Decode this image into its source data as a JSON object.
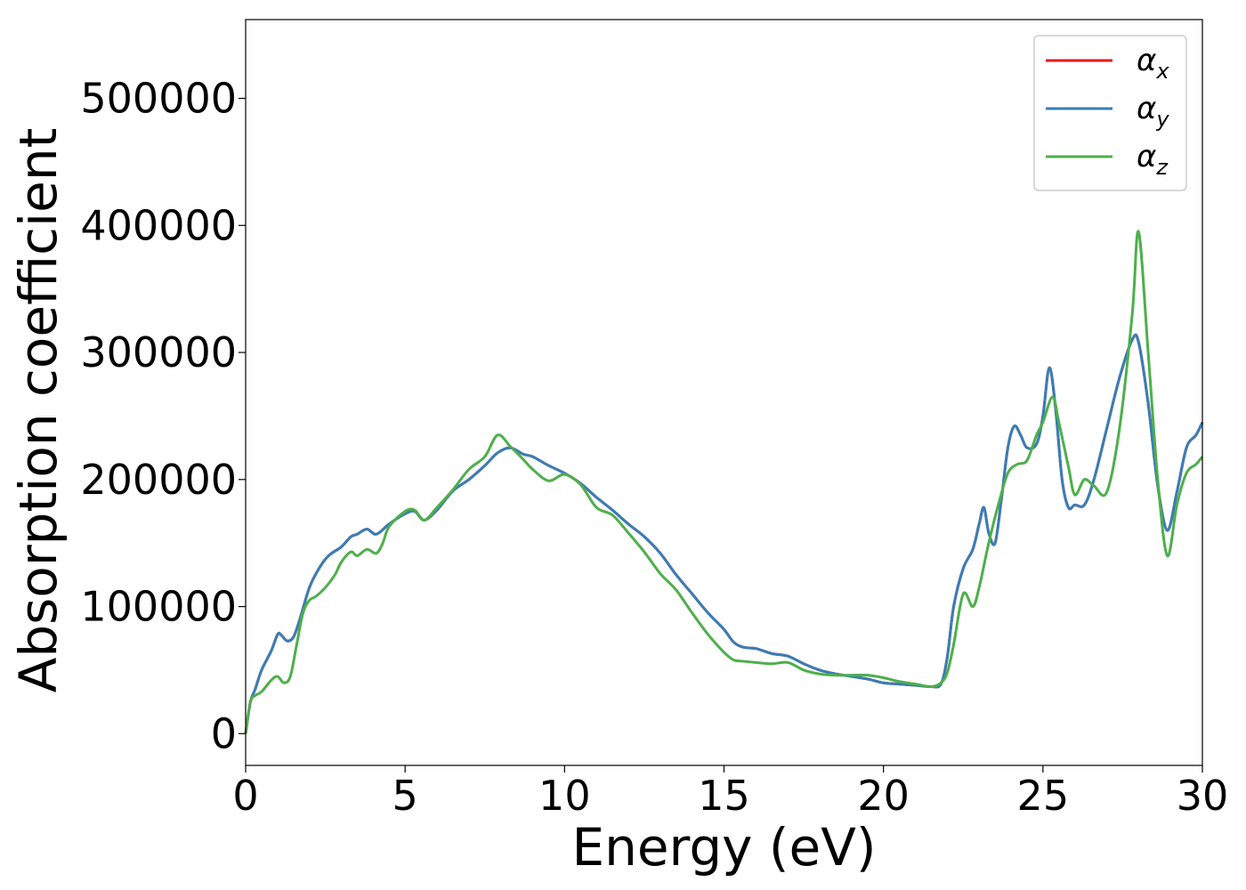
{
  "chart_data": {
    "type": "line",
    "title": "",
    "xlabel": "Energy (eV)",
    "ylabel": "Absorption coefficient",
    "xlim": [
      0,
      30
    ],
    "ylim": [
      -25000,
      562000
    ],
    "xticks": [
      0,
      5,
      10,
      15,
      20,
      25,
      30
    ],
    "yticks": [
      0,
      100000,
      200000,
      300000,
      400000,
      500000
    ],
    "legend_position": "top-right",
    "grid": false,
    "series": [
      {
        "name": "α",
        "subscript": "x",
        "color": "#e41a1c",
        "x": [
          0,
          0.15,
          0.3,
          0.5,
          0.8,
          1.0,
          1.1,
          1.3,
          1.5,
          1.7,
          2.0,
          2.3,
          2.6,
          3.0,
          3.3,
          3.5,
          3.8,
          4.1,
          4.5,
          5.0,
          5.3,
          5.6,
          6.0,
          6.5,
          7.0,
          7.5,
          7.9,
          8.3,
          8.7,
          9.0,
          9.5,
          10.0,
          10.5,
          11.0,
          11.5,
          12.0,
          12.5,
          13.0,
          13.5,
          14.0,
          14.5,
          15.0,
          15.3,
          15.6,
          16.0,
          16.5,
          17.0,
          17.5,
          18.0,
          18.5,
          19.0,
          19.5,
          20.0,
          20.5,
          21.0,
          21.5,
          21.8,
          22.0,
          22.2,
          22.5,
          22.8,
          23.0,
          23.15,
          23.3,
          23.5,
          23.7,
          23.9,
          24.1,
          24.3,
          24.5,
          24.8,
          25.0,
          25.2,
          25.4,
          25.6,
          25.8,
          26.0,
          26.3,
          26.6,
          27.0,
          27.4,
          27.8,
          28.0,
          28.3,
          28.6,
          28.9,
          29.2,
          29.5,
          29.8,
          30.0
        ],
        "y": [
          0,
          25000,
          35000,
          50000,
          65000,
          78000,
          78000,
          73000,
          76000,
          90000,
          115000,
          130000,
          140000,
          147000,
          155000,
          157000,
          161000,
          157000,
          165000,
          173000,
          175000,
          168000,
          176000,
          191000,
          200000,
          211000,
          221000,
          225000,
          220000,
          218000,
          211000,
          205000,
          197000,
          186000,
          176000,
          165000,
          155000,
          142000,
          125000,
          110000,
          95000,
          82000,
          72000,
          68000,
          67000,
          63000,
          61000,
          55000,
          50000,
          47000,
          45000,
          43000,
          40000,
          39000,
          38000,
          37000,
          39000,
          60000,
          100000,
          130000,
          145000,
          165000,
          178000,
          158000,
          150000,
          185000,
          225000,
          242000,
          235000,
          225000,
          228000,
          250000,
          288000,
          255000,
          200000,
          178000,
          180000,
          180000,
          200000,
          240000,
          280000,
          310000,
          308000,
          260000,
          195000,
          160000,
          190000,
          225000,
          235000,
          245000
        ]
      },
      {
        "name": "α",
        "subscript": "y",
        "color": "#377eb8",
        "x": [
          0,
          0.15,
          0.3,
          0.5,
          0.8,
          1.0,
          1.1,
          1.3,
          1.5,
          1.7,
          2.0,
          2.3,
          2.6,
          3.0,
          3.3,
          3.5,
          3.8,
          4.1,
          4.5,
          5.0,
          5.3,
          5.6,
          6.0,
          6.5,
          7.0,
          7.5,
          7.9,
          8.3,
          8.7,
          9.0,
          9.5,
          10.0,
          10.5,
          11.0,
          11.5,
          12.0,
          12.5,
          13.0,
          13.5,
          14.0,
          14.5,
          15.0,
          15.3,
          15.6,
          16.0,
          16.5,
          17.0,
          17.5,
          18.0,
          18.5,
          19.0,
          19.5,
          20.0,
          20.5,
          21.0,
          21.5,
          21.8,
          22.0,
          22.2,
          22.5,
          22.8,
          23.0,
          23.15,
          23.3,
          23.5,
          23.7,
          23.9,
          24.1,
          24.3,
          24.5,
          24.8,
          25.0,
          25.2,
          25.4,
          25.6,
          25.8,
          26.0,
          26.3,
          26.6,
          27.0,
          27.4,
          27.8,
          28.0,
          28.3,
          28.6,
          28.9,
          29.2,
          29.5,
          29.8,
          30.0
        ],
        "y": [
          0,
          25000,
          35000,
          50000,
          65000,
          78000,
          78000,
          73000,
          76000,
          90000,
          115000,
          130000,
          140000,
          147000,
          155000,
          157000,
          161000,
          157000,
          165000,
          173000,
          175000,
          168000,
          176000,
          191000,
          200000,
          211000,
          221000,
          225000,
          220000,
          218000,
          211000,
          205000,
          197000,
          186000,
          176000,
          165000,
          155000,
          142000,
          125000,
          110000,
          95000,
          82000,
          72000,
          68000,
          67000,
          63000,
          61000,
          55000,
          50000,
          47000,
          45000,
          43000,
          40000,
          39000,
          38000,
          37000,
          39000,
          60000,
          100000,
          130000,
          145000,
          165000,
          178000,
          158000,
          150000,
          185000,
          225000,
          242000,
          235000,
          225000,
          228000,
          250000,
          288000,
          255000,
          200000,
          178000,
          180000,
          180000,
          200000,
          240000,
          280000,
          310000,
          308000,
          260000,
          195000,
          160000,
          190000,
          225000,
          235000,
          245000
        ]
      },
      {
        "name": "α",
        "subscript": "z",
        "color": "#4daf4a",
        "x": [
          0,
          0.15,
          0.3,
          0.5,
          0.8,
          1.0,
          1.2,
          1.4,
          1.6,
          1.8,
          2.0,
          2.2,
          2.5,
          2.8,
          3.0,
          3.3,
          3.5,
          3.8,
          4.1,
          4.3,
          4.5,
          5.0,
          5.3,
          5.6,
          6.0,
          6.5,
          7.0,
          7.5,
          7.9,
          8.3,
          8.7,
          9.0,
          9.5,
          10.0,
          10.5,
          11.0,
          11.5,
          12.0,
          12.5,
          13.0,
          13.5,
          14.0,
          14.5,
          15.0,
          15.3,
          15.6,
          16.0,
          16.5,
          17.0,
          17.5,
          18.0,
          18.5,
          19.0,
          19.5,
          20.0,
          20.5,
          21.0,
          21.5,
          21.8,
          22.0,
          22.2,
          22.5,
          22.8,
          23.0,
          23.3,
          23.6,
          23.9,
          24.2,
          24.5,
          24.8,
          25.0,
          25.3,
          25.5,
          25.8,
          26.0,
          26.3,
          26.6,
          27.0,
          27.4,
          27.8,
          28.0,
          28.3,
          28.6,
          28.9,
          29.2,
          29.5,
          29.8,
          30.0
        ],
        "y": [
          0,
          25000,
          30000,
          33000,
          42000,
          45000,
          40000,
          45000,
          70000,
          95000,
          105000,
          108000,
          115000,
          125000,
          135000,
          143000,
          140000,
          145000,
          142000,
          150000,
          163000,
          175000,
          176000,
          168000,
          178000,
          192000,
          208000,
          218000,
          235000,
          226000,
          216000,
          208000,
          199000,
          204000,
          196000,
          178000,
          172000,
          158000,
          143000,
          126000,
          113000,
          95000,
          78000,
          64000,
          58000,
          57000,
          56000,
          55000,
          56000,
          50000,
          47000,
          46000,
          46000,
          46000,
          44000,
          41000,
          39000,
          37000,
          40000,
          48000,
          70000,
          110000,
          100000,
          115000,
          150000,
          180000,
          205000,
          212000,
          215000,
          235000,
          245000,
          265000,
          245000,
          210000,
          188000,
          200000,
          195000,
          190000,
          240000,
          330000,
          395000,
          300000,
          200000,
          140000,
          180000,
          205000,
          212000,
          218000
        ]
      }
    ]
  }
}
